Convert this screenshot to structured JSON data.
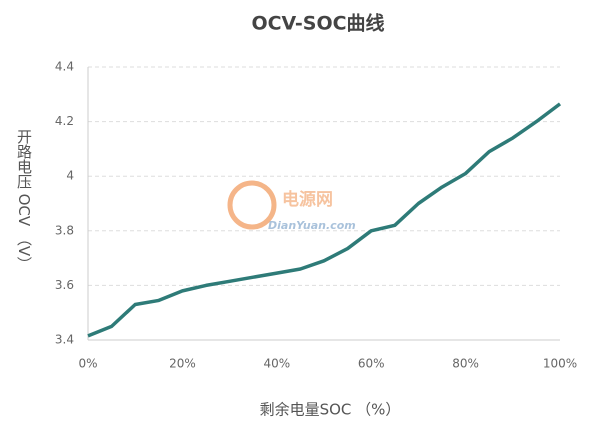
{
  "chart_data": {
    "type": "line",
    "title": "OCV-SOC曲线",
    "x_label": "剩余电量SOC （%）",
    "y_label": "开路电压 OCV （V）",
    "watermark": [
      "电源网",
      "DianYuan.com"
    ],
    "x": [
      0,
      5,
      10,
      15,
      20,
      25,
      30,
      35,
      40,
      45,
      50,
      55,
      60,
      65,
      70,
      75,
      80,
      85,
      90,
      95,
      100
    ],
    "series": [
      {
        "name": "OCV",
        "color": "#2e7b78",
        "values": [
          3.415,
          3.45,
          3.53,
          3.545,
          3.58,
          3.6,
          3.615,
          3.63,
          3.645,
          3.66,
          3.69,
          3.735,
          3.8,
          3.82,
          3.9,
          3.96,
          4.01,
          4.09,
          4.14,
          4.2,
          4.265
        ]
      }
    ],
    "xlim": [
      0,
      100
    ],
    "xticks": [
      {
        "value": 0,
        "label": "0%"
      },
      {
        "value": 20,
        "label": "20%"
      },
      {
        "value": 40,
        "label": "40%"
      },
      {
        "value": 60,
        "label": "60%"
      },
      {
        "value": 80,
        "label": "80%"
      },
      {
        "value": 100,
        "label": "100%"
      }
    ],
    "ylim": [
      3.4,
      4.4
    ],
    "yticks": [
      3.4,
      3.6,
      3.8,
      4,
      4.2,
      4.4
    ],
    "grid": true
  }
}
